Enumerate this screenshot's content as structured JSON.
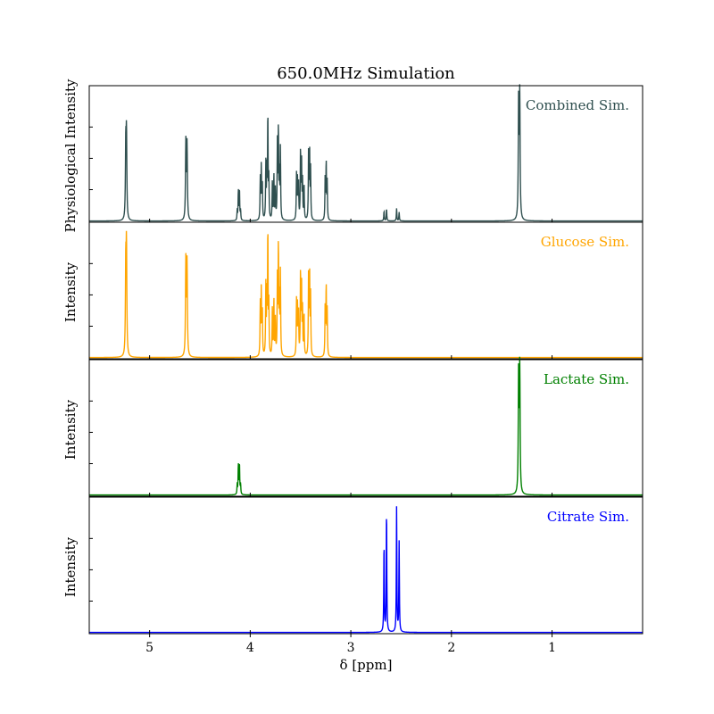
{
  "chart_data": {
    "type": "line",
    "title": "650.0MHz Simulation",
    "xlabel": "δ [ppm]",
    "xlim": [
      5.6,
      0.1
    ],
    "x_reversed": true,
    "x_ticks": [
      5,
      4,
      3,
      2,
      1
    ],
    "grid": false,
    "panels": [
      {
        "name": "Combined Sim.",
        "label": "Combined Sim.",
        "ylabel": "Physiological Intensity",
        "color": "#2f4f4f",
        "ylim": [
          -0.01,
          1.08
        ],
        "peaks": [
          [
            5.23,
            0.66,
            0.004
          ],
          [
            5.237,
            0.6,
            0.004
          ],
          [
            4.64,
            0.62,
            0.004
          ],
          [
            4.628,
            0.6,
            0.004
          ],
          [
            4.118,
            0.24,
            0.003
          ],
          [
            4.107,
            0.25,
            0.003
          ],
          [
            4.096,
            0.08,
            0.003
          ],
          [
            4.129,
            0.08,
            0.003
          ],
          [
            3.9,
            0.33,
            0.003
          ],
          [
            3.89,
            0.42,
            0.003
          ],
          [
            3.88,
            0.3,
            0.003
          ],
          [
            3.845,
            0.45,
            0.003
          ],
          [
            3.835,
            0.38,
            0.003
          ],
          [
            3.825,
            0.84,
            0.003
          ],
          [
            3.815,
            0.32,
            0.003
          ],
          [
            3.78,
            0.3,
            0.003
          ],
          [
            3.765,
            0.36,
            0.003
          ],
          [
            3.75,
            0.25,
            0.003
          ],
          [
            3.73,
            0.6,
            0.003
          ],
          [
            3.72,
            0.72,
            0.003
          ],
          [
            3.71,
            0.35,
            0.003
          ],
          [
            3.7,
            0.56,
            0.003
          ],
          [
            3.54,
            0.36,
            0.003
          ],
          [
            3.53,
            0.32,
            0.003
          ],
          [
            3.52,
            0.3,
            0.003
          ],
          [
            3.5,
            0.56,
            0.003
          ],
          [
            3.49,
            0.46,
            0.003
          ],
          [
            3.48,
            0.3,
            0.003
          ],
          [
            3.465,
            0.28,
            0.003
          ],
          [
            3.42,
            0.55,
            0.003
          ],
          [
            3.41,
            0.55,
            0.003
          ],
          [
            3.4,
            0.4,
            0.003
          ],
          [
            3.255,
            0.34,
            0.003
          ],
          [
            3.245,
            0.46,
            0.003
          ],
          [
            3.235,
            0.3,
            0.003
          ],
          [
            2.67,
            0.08,
            0.003
          ],
          [
            2.645,
            0.1,
            0.003
          ],
          [
            2.545,
            0.1,
            0.003
          ],
          [
            2.52,
            0.07,
            0.003
          ],
          [
            1.332,
            0.99,
            0.004
          ],
          [
            1.321,
            0.98,
            0.004
          ]
        ]
      },
      {
        "name": "Glucose Sim.",
        "label": "Glucose Sim.",
        "ylabel": "Intensity",
        "color": "#ffa500",
        "ylim": [
          -0.01,
          1.08
        ],
        "peaks": [
          [
            5.23,
            0.84,
            0.004
          ],
          [
            5.237,
            0.72,
            0.004
          ],
          [
            4.64,
            0.76,
            0.004
          ],
          [
            4.628,
            0.74,
            0.004
          ],
          [
            3.9,
            0.42,
            0.003
          ],
          [
            3.89,
            0.52,
            0.003
          ],
          [
            3.88,
            0.38,
            0.003
          ],
          [
            3.845,
            0.56,
            0.003
          ],
          [
            3.835,
            0.46,
            0.003
          ],
          [
            3.825,
            1.0,
            0.003
          ],
          [
            3.815,
            0.4,
            0.003
          ],
          [
            3.78,
            0.38,
            0.003
          ],
          [
            3.765,
            0.45,
            0.003
          ],
          [
            3.75,
            0.3,
            0.003
          ],
          [
            3.73,
            0.6,
            0.003
          ],
          [
            3.72,
            0.88,
            0.003
          ],
          [
            3.71,
            0.44,
            0.003
          ],
          [
            3.7,
            0.66,
            0.003
          ],
          [
            3.54,
            0.44,
            0.003
          ],
          [
            3.53,
            0.4,
            0.003
          ],
          [
            3.52,
            0.36,
            0.003
          ],
          [
            3.5,
            0.68,
            0.003
          ],
          [
            3.49,
            0.56,
            0.003
          ],
          [
            3.48,
            0.36,
            0.003
          ],
          [
            3.465,
            0.34,
            0.003
          ],
          [
            3.42,
            0.66,
            0.003
          ],
          [
            3.41,
            0.66,
            0.003
          ],
          [
            3.4,
            0.48,
            0.003
          ],
          [
            3.255,
            0.4,
            0.003
          ],
          [
            3.245,
            0.56,
            0.003
          ],
          [
            3.235,
            0.36,
            0.003
          ]
        ]
      },
      {
        "name": "Lactate Sim.",
        "label": "Lactate Sim.",
        "ylabel": "Intensity",
        "color": "#008000",
        "ylim": [
          -0.01,
          1.08
        ],
        "peaks": [
          [
            4.118,
            0.24,
            0.003
          ],
          [
            4.107,
            0.25,
            0.003
          ],
          [
            4.096,
            0.08,
            0.003
          ],
          [
            4.129,
            0.08,
            0.003
          ],
          [
            1.332,
            1.0,
            0.004
          ],
          [
            1.321,
            0.99,
            0.004
          ]
        ]
      },
      {
        "name": "Citrate Sim.",
        "label": "Citrate Sim.",
        "ylabel": "Intensity",
        "color": "#0000ff",
        "ylim": [
          -0.01,
          1.08
        ],
        "peaks": [
          [
            2.67,
            0.72,
            0.003
          ],
          [
            2.645,
            1.0,
            0.003
          ],
          [
            2.545,
            1.0,
            0.003
          ],
          [
            2.52,
            0.72,
            0.003
          ]
        ]
      }
    ]
  }
}
